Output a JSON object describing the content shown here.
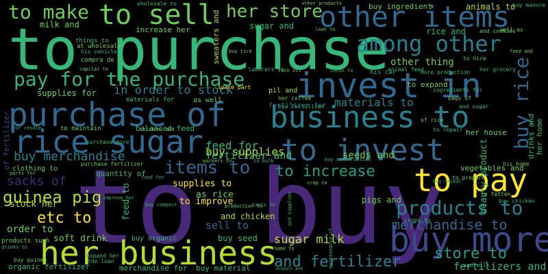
{
  "background": "#000000",
  "palette": {
    "purple": "#440154",
    "indigo": "#482878",
    "blue": "#3e4989",
    "slate": "#31688e",
    "teal": "#26828e",
    "cyan": "#1f9e89",
    "green": "#35b779",
    "mint": "#6ece58",
    "lime": "#b5de2b",
    "yellow": "#fde725"
  },
  "words": [
    "to buy",
    "to purchase",
    "her business",
    "buy more",
    "purchase of",
    "rice sugar",
    "to invest",
    "invest in",
    "business to",
    "to pay",
    "to sell",
    "other items",
    "among other",
    "to make",
    "her store",
    "pay for the purchase",
    "products to",
    "items to",
    "to increase",
    "store to",
    "buy rice",
    "and fertilizer",
    "merchandise to",
    "guinea pig",
    "etc to",
    "sugar milk",
    "buy merchandise",
    "in order to stock",
    "materials to",
    "fertilizers and",
    "buy supplies",
    "feed for",
    "supplies to",
    "sacks of",
    "sell to",
    "seeds and",
    "fertilizer and",
    "other thing",
    "to improve",
    "as rice",
    "order to",
    "stock her",
    "soft drink",
    "milk and",
    "sugar and",
    "buy ingredient",
    "animals to",
    "rice and",
    "to expand",
    "supplies for",
    "increase her",
    "buy seed",
    "buy organic",
    "organic fertilizer",
    "merchandise for",
    "buy material",
    "pigs and",
    "and chicken",
    "fertilizer for",
    "her house",
    "feed to",
    "balanced feed",
    "quantity of",
    "purchase fertilizer",
    "beauty product",
    "vegetables and",
    "of fertilizer",
    "as well",
    "wholesale to",
    "animal feed",
    "maintenance of",
    "other products",
    "compra de",
    "things to",
    "her grocery",
    "to maintain",
    "materials for",
    "pil and",
    "spare part",
    "sweaters and",
    "buy manure",
    "at wholesale",
    "his vehicle",
    "capital to",
    "her coffee",
    "buy fertilizer",
    "buy tire",
    "rice oil",
    "laborers to",
    "more production",
    "ingredients for",
    "bags of",
    "and sugar",
    "drinks and",
    "her home",
    "his home",
    "his car",
    "well as",
    "and cookies",
    "of rice",
    "to repair",
    "to prepare",
    "to fatten",
    "buy chicken",
    "and milk",
    "crops to",
    "products such",
    "buy guinea",
    "the loan",
    "expand her",
    "food for",
    "production to",
    "improve her",
    "buy compost",
    "taxis to",
    "crop to",
    "seeds to",
    "home to",
    "animals and",
    "and supplies",
    "buy construction",
    "workers to",
    "in bulk",
    "chickens and",
    "for resale",
    "parts for",
    "drinks to",
    "clothing to",
    "purchase more",
    "to hire",
    "buy animal",
    "loan to",
    "feed and",
    "vehicle to"
  ]
}
